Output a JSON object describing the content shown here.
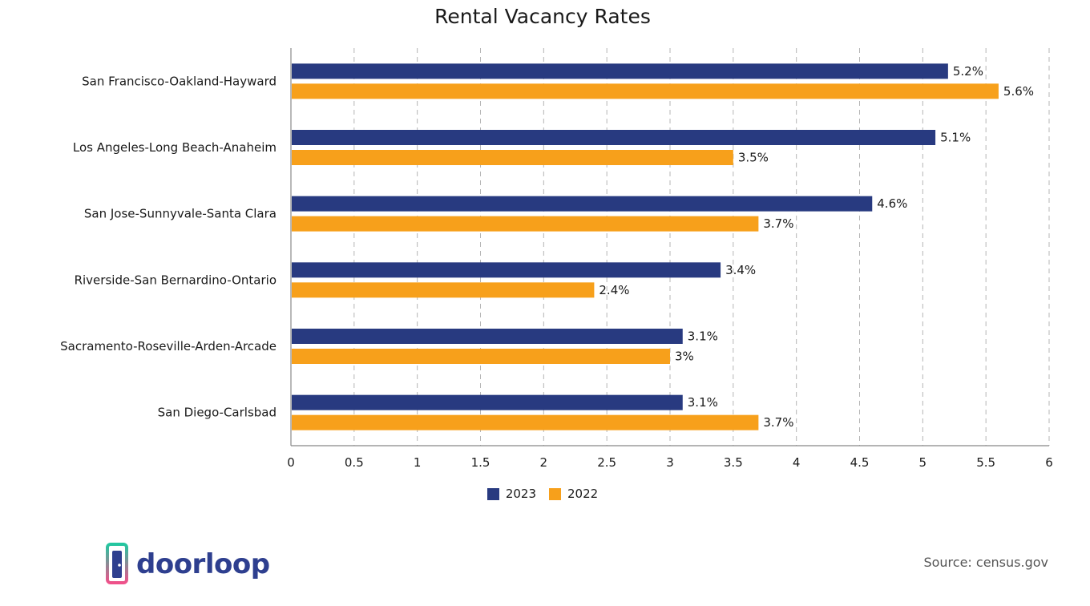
{
  "colors": {
    "series_2023": "#283A80",
    "series_2022": "#F7A01B",
    "grid": "#b5b5b5",
    "axis": "#888888"
  },
  "chart_data": {
    "type": "bar",
    "orientation": "horizontal",
    "title": "Rental Vacancy Rates",
    "categories": [
      "San Francisco-Oakland-Hayward",
      "Los Angeles-Long Beach-Anaheim",
      "San Jose-Sunnyvale-Santa Clara",
      "Riverside-San Bernardino-Ontario",
      "Sacramento-Roseville-Arden-Arcade",
      "San Diego-Carlsbad"
    ],
    "series": [
      {
        "name": "2023",
        "values": [
          5.2,
          5.1,
          4.6,
          3.4,
          3.1,
          3.1
        ],
        "labels": [
          "5.2%",
          "5.1%",
          "4.6%",
          "3.4%",
          "3.1%",
          "3.1%"
        ]
      },
      {
        "name": "2022",
        "values": [
          5.6,
          3.5,
          3.7,
          2.4,
          3,
          3.7
        ],
        "labels": [
          "5.6%",
          "3.5%",
          "3.7%",
          "2.4%",
          "3%",
          "3.7%"
        ]
      }
    ],
    "xlim": [
      0,
      6
    ],
    "xticks": [
      "0",
      "0.5",
      "1",
      "1.5",
      "2",
      "2.5",
      "3",
      "3.5",
      "4",
      "4.5",
      "5",
      "5.5",
      "6"
    ],
    "grid": true,
    "legend": "bottom-center"
  },
  "logo": {
    "text": "doorloop"
  },
  "source": "Source: census.gov"
}
